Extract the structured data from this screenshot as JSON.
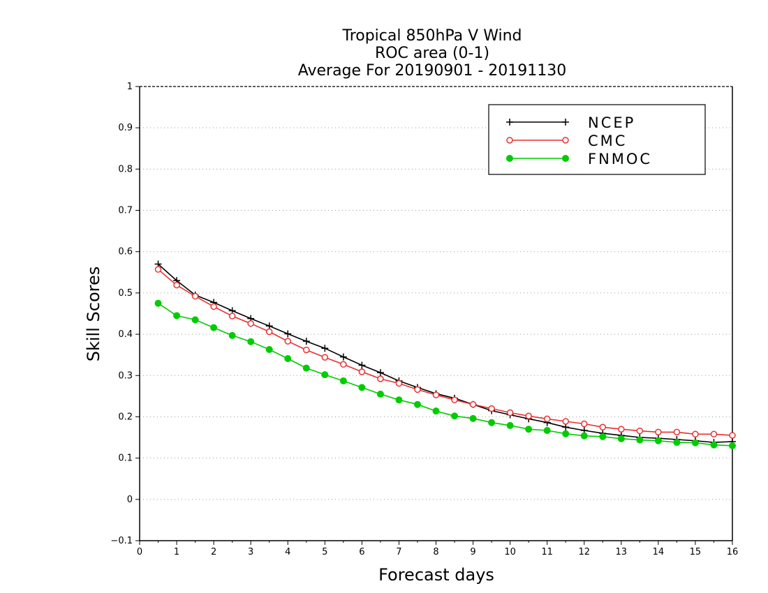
{
  "chart_data": {
    "type": "line",
    "title_lines": [
      "Tropical 850hPa V Wind",
      "ROC area (0-1)",
      "Average For 20190901 - 20191130"
    ],
    "xlabel": "Forecast days",
    "ylabel": "Skill Scores",
    "xlim": [
      0,
      16
    ],
    "ylim": [
      -0.1,
      1
    ],
    "x_ticks": [
      "0",
      "1",
      "2",
      "3",
      "4",
      "5",
      "6",
      "7",
      "8",
      "9",
      "10",
      "11",
      "12",
      "13",
      "14",
      "15",
      "16"
    ],
    "y_ticks": [
      "−0.1",
      "0",
      "0.1",
      "0.2",
      "0.3",
      "0.4",
      "0.5",
      "0.6",
      "0.7",
      "0.8",
      "0.9",
      "1"
    ],
    "grid": "horizontal dotted",
    "legend_position": "top-right",
    "x": [
      0.5,
      1,
      1.5,
      2,
      2.5,
      3,
      3.5,
      4,
      4.5,
      5,
      5.5,
      6,
      6.5,
      7,
      7.5,
      8,
      8.5,
      9,
      9.5,
      10,
      10.5,
      11,
      11.5,
      12,
      12.5,
      13,
      13.5,
      14,
      14.5,
      15,
      15.5,
      16
    ],
    "series": [
      {
        "name": "NCEP",
        "color": "#000000",
        "marker": "plus",
        "values": [
          0.57,
          0.53,
          0.495,
          0.477,
          0.457,
          0.438,
          0.42,
          0.401,
          0.383,
          0.366,
          0.345,
          0.325,
          0.307,
          0.287,
          0.271,
          0.256,
          0.245,
          0.23,
          0.215,
          0.205,
          0.195,
          0.186,
          0.175,
          0.167,
          0.16,
          0.155,
          0.15,
          0.148,
          0.145,
          0.142,
          0.138,
          0.14
        ]
      },
      {
        "name": "CMC",
        "color": "#e83030",
        "marker": "open-circle",
        "values": [
          0.557,
          0.519,
          0.492,
          0.467,
          0.444,
          0.426,
          0.406,
          0.383,
          0.362,
          0.344,
          0.327,
          0.309,
          0.292,
          0.281,
          0.266,
          0.253,
          0.241,
          0.23,
          0.22,
          0.21,
          0.202,
          0.195,
          0.189,
          0.183,
          0.175,
          0.17,
          0.166,
          0.163,
          0.163,
          0.158,
          0.158,
          0.155
        ]
      },
      {
        "name": "FNMOC",
        "color": "#00cc00",
        "marker": "filled-circle",
        "values": [
          0.475,
          0.445,
          0.435,
          0.416,
          0.397,
          0.382,
          0.363,
          0.341,
          0.318,
          0.302,
          0.287,
          0.271,
          0.255,
          0.241,
          0.23,
          0.214,
          0.202,
          0.196,
          0.186,
          0.179,
          0.17,
          0.167,
          0.159,
          0.154,
          0.152,
          0.147,
          0.144,
          0.142,
          0.138,
          0.137,
          0.132,
          0.13
        ]
      }
    ]
  }
}
